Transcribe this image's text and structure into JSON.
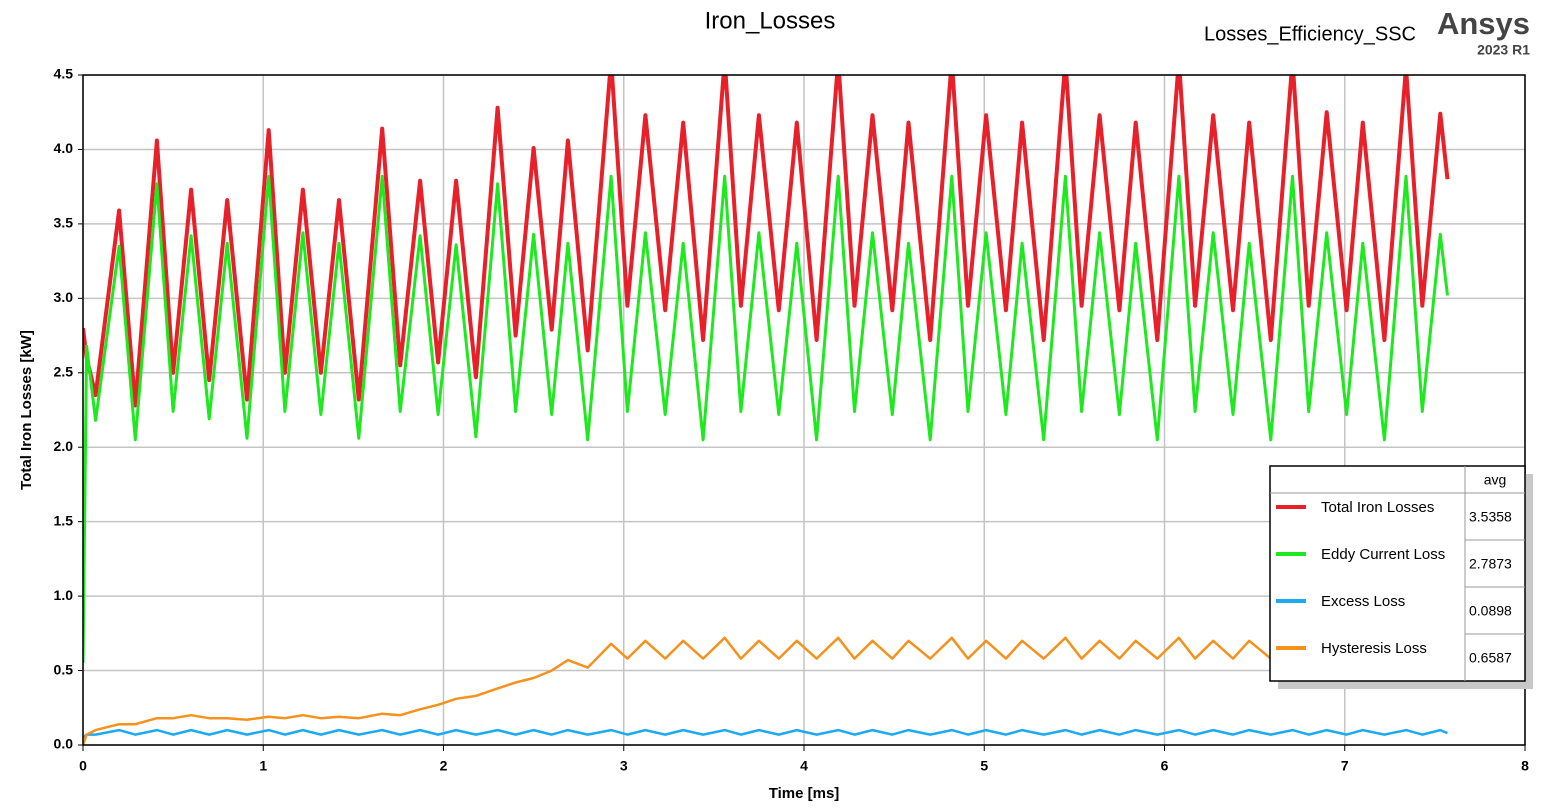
{
  "chart_data": {
    "type": "line",
    "title": "Iron_Losses",
    "subtitle": "Losses_Efficiency_SSC",
    "brand": "Ansys",
    "version": "2023 R1",
    "xlabel": "Time [ms]",
    "ylabel": "Total Iron Losses [kW]",
    "legend_header": "avg",
    "grid": true,
    "legend": "lower right",
    "xlim": [
      0,
      8
    ],
    "ylim": [
      0,
      4.5
    ],
    "xticks": [
      0,
      1,
      2,
      3,
      4,
      5,
      6,
      7,
      8
    ],
    "yticks": [
      {
        "value": 0,
        "label": "0.0"
      },
      0.5,
      {
        "value": 1,
        "label": "1.0"
      },
      1.5,
      {
        "value": 2,
        "label": "2.0"
      },
      2.5,
      {
        "value": 3,
        "label": "3.0"
      },
      3.5,
      {
        "value": 4,
        "label": "4.0"
      },
      4.5
    ],
    "x": [
      0,
      0.02,
      0.07,
      0.2,
      0.29,
      0.41,
      0.5,
      0.6,
      0.7,
      0.8,
      0.91,
      1.03,
      1.12,
      1.22,
      1.32,
      1.42,
      1.53,
      1.66,
      1.76,
      1.87,
      1.97,
      2.07,
      2.18,
      2.3,
      2.4,
      2.5,
      2.6,
      2.69,
      2.8,
      2.93,
      3.02,
      3.12,
      3.23,
      3.33,
      3.44,
      3.56,
      3.65,
      3.75,
      3.86,
      3.96,
      4.07,
      4.19,
      4.28,
      4.38,
      4.49,
      4.58,
      4.7,
      4.82,
      4.91,
      5.01,
      5.12,
      5.21,
      5.33,
      5.45,
      5.54,
      5.64,
      5.75,
      5.84,
      5.96,
      6.08,
      6.17,
      6.27,
      6.38,
      6.47,
      6.59,
      6.71,
      6.8,
      6.9,
      7.01,
      7.1,
      7.22,
      7.34,
      7.43,
      7.53,
      7.57
    ],
    "series": [
      {
        "name": "Total Iron Losses",
        "color": "#e8202a",
        "width": 4,
        "avg": 3.5358,
        "values": [
          2.8,
          2.6,
          2.35,
          3.59,
          2.28,
          4.06,
          2.5,
          3.73,
          2.45,
          3.66,
          2.32,
          4.13,
          2.5,
          3.73,
          2.5,
          3.66,
          2.32,
          4.14,
          2.55,
          3.79,
          2.57,
          3.79,
          2.47,
          4.28,
          2.75,
          4.01,
          2.79,
          4.06,
          2.65,
          4.6,
          2.95,
          4.23,
          2.92,
          4.18,
          2.72,
          4.6,
          2.95,
          4.23,
          2.92,
          4.18,
          2.72,
          4.6,
          2.95,
          4.23,
          2.92,
          4.18,
          2.72,
          4.6,
          2.95,
          4.23,
          2.92,
          4.18,
          2.72,
          4.6,
          2.95,
          4.23,
          2.92,
          4.18,
          2.72,
          4.6,
          2.95,
          4.23,
          2.92,
          4.18,
          2.72,
          4.6,
          2.95,
          4.25,
          2.92,
          4.18,
          2.72,
          4.55,
          2.95,
          4.24,
          3.8
        ]
      },
      {
        "name": "Eddy Current Loss",
        "color": "#1ee81e",
        "width": 3,
        "avg": 2.7873,
        "values": [
          0.55,
          2.68,
          2.18,
          3.35,
          2.05,
          3.77,
          2.24,
          3.42,
          2.19,
          3.37,
          2.06,
          3.82,
          2.24,
          3.44,
          2.22,
          3.37,
          2.06,
          3.82,
          2.24,
          3.42,
          2.22,
          3.36,
          2.07,
          3.77,
          2.24,
          3.43,
          2.22,
          3.37,
          2.05,
          3.82,
          2.24,
          3.44,
          2.22,
          3.37,
          2.05,
          3.82,
          2.24,
          3.44,
          2.22,
          3.37,
          2.05,
          3.82,
          2.24,
          3.44,
          2.22,
          3.37,
          2.05,
          3.82,
          2.24,
          3.44,
          2.22,
          3.37,
          2.05,
          3.82,
          2.24,
          3.44,
          2.22,
          3.37,
          2.05,
          3.82,
          2.24,
          3.44,
          2.22,
          3.37,
          2.05,
          3.82,
          2.24,
          3.44,
          2.22,
          3.37,
          2.05,
          3.82,
          2.24,
          3.43,
          3.02
        ]
      },
      {
        "name": "Excess Loss",
        "color": "#1eaaf0",
        "width": 2.5,
        "avg": 0.0898,
        "values": [
          0.05,
          0.07,
          0.07,
          0.1,
          0.07,
          0.1,
          0.07,
          0.1,
          0.07,
          0.1,
          0.07,
          0.1,
          0.07,
          0.1,
          0.07,
          0.1,
          0.07,
          0.1,
          0.07,
          0.1,
          0.07,
          0.1,
          0.07,
          0.1,
          0.07,
          0.1,
          0.07,
          0.1,
          0.07,
          0.1,
          0.07,
          0.1,
          0.07,
          0.1,
          0.07,
          0.1,
          0.07,
          0.1,
          0.07,
          0.1,
          0.07,
          0.1,
          0.07,
          0.1,
          0.07,
          0.1,
          0.07,
          0.1,
          0.07,
          0.1,
          0.07,
          0.1,
          0.07,
          0.1,
          0.07,
          0.1,
          0.07,
          0.1,
          0.07,
          0.1,
          0.07,
          0.1,
          0.07,
          0.1,
          0.07,
          0.1,
          0.07,
          0.1,
          0.07,
          0.1,
          0.07,
          0.1,
          0.07,
          0.1,
          0.08
        ]
      },
      {
        "name": "Hysteresis Loss",
        "color": "#f5921e",
        "width": 2.5,
        "avg": 0.6587,
        "values": [
          0.0,
          0.07,
          0.1,
          0.14,
          0.14,
          0.18,
          0.18,
          0.2,
          0.18,
          0.18,
          0.17,
          0.19,
          0.18,
          0.2,
          0.18,
          0.19,
          0.18,
          0.21,
          0.2,
          0.24,
          0.27,
          0.31,
          0.33,
          0.38,
          0.42,
          0.45,
          0.5,
          0.57,
          0.52,
          0.68,
          0.58,
          0.7,
          0.58,
          0.7,
          0.58,
          0.72,
          0.58,
          0.7,
          0.58,
          0.7,
          0.58,
          0.72,
          0.58,
          0.7,
          0.58,
          0.7,
          0.58,
          0.72,
          0.58,
          0.7,
          0.58,
          0.7,
          0.58,
          0.72,
          0.58,
          0.7,
          0.58,
          0.7,
          0.58,
          0.72,
          0.58,
          0.7,
          0.58,
          0.7,
          0.58,
          0.72,
          0.58,
          0.7,
          0.58,
          0.7,
          0.58,
          0.72,
          0.58,
          0.7,
          0.62
        ]
      }
    ]
  }
}
